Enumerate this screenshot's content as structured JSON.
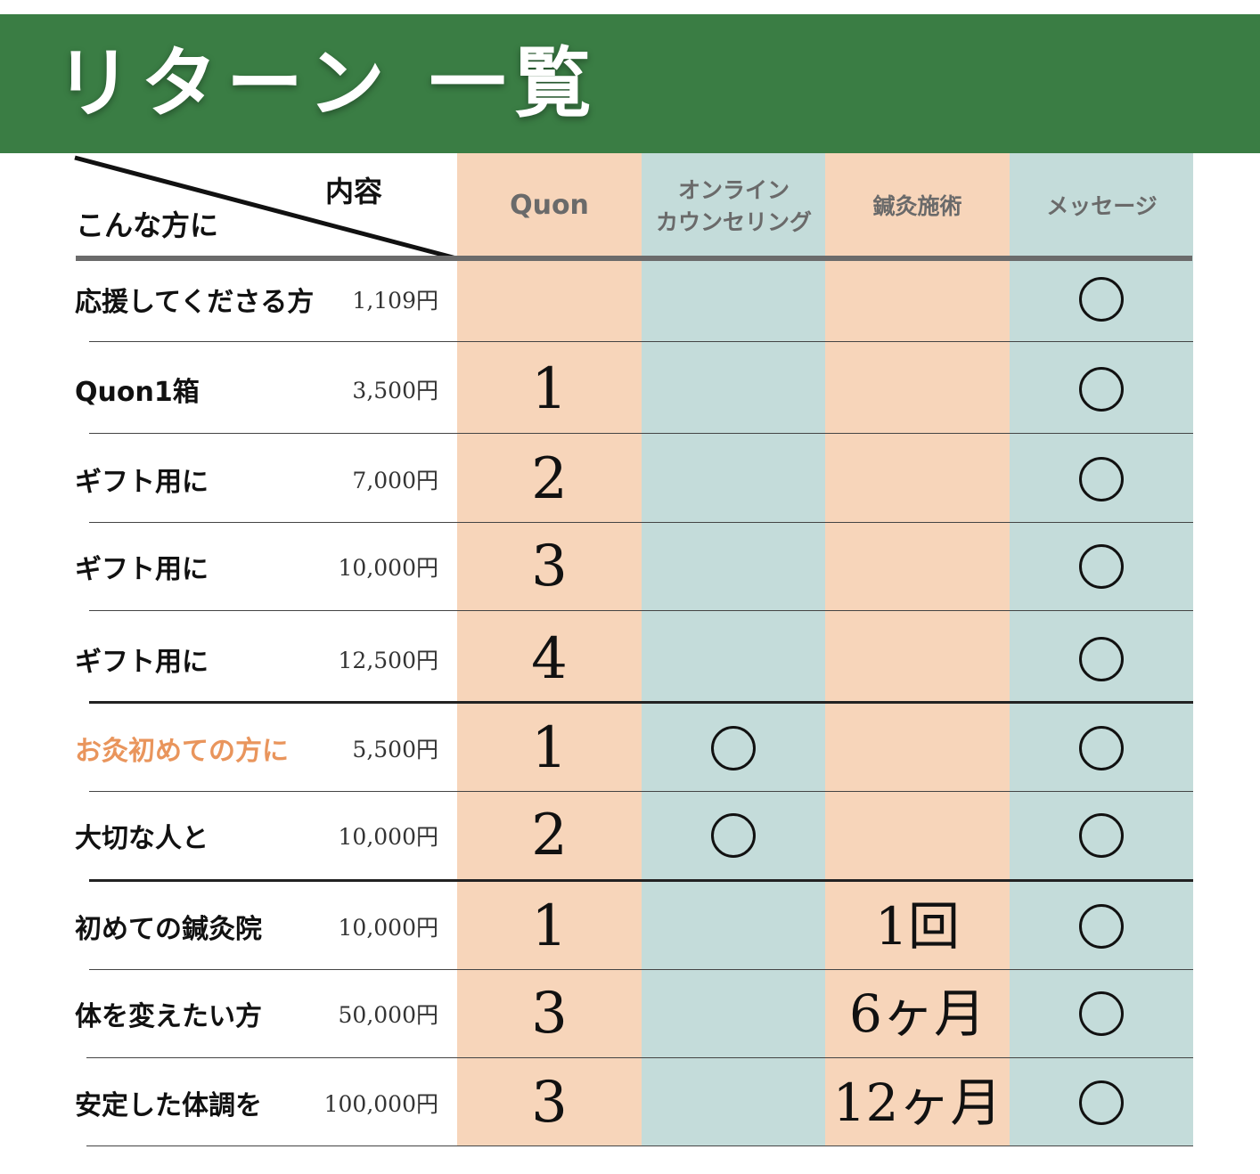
{
  "title": "リターン 一覧",
  "corner": {
    "content_label": "内容",
    "target_label": "こんな方に"
  },
  "columns": [
    {
      "id": "quon",
      "lines": [
        "Quon"
      ]
    },
    {
      "id": "counseling",
      "lines": [
        "オンライン",
        "カウンセリング"
      ]
    },
    {
      "id": "acupuncture",
      "lines": [
        "鍼灸施術"
      ]
    },
    {
      "id": "message",
      "lines": [
        "メッセージ"
      ]
    }
  ],
  "circle_mark": "○",
  "rows": [
    {
      "label": "応援してくださる方",
      "price": "1,109円",
      "quon": "",
      "counseling": false,
      "acupuncture": "",
      "message": true
    },
    {
      "label": "Quon1箱",
      "price": "3,500円",
      "quon": "1",
      "counseling": false,
      "acupuncture": "",
      "message": true
    },
    {
      "label": "ギフト用に",
      "price": "7,000円",
      "quon": "2",
      "counseling": false,
      "acupuncture": "",
      "message": true
    },
    {
      "label": "ギフト用に",
      "price": "10,000円",
      "quon": "3",
      "counseling": false,
      "acupuncture": "",
      "message": true
    },
    {
      "label": "ギフト用に",
      "price": "12,500円",
      "quon": "4",
      "counseling": false,
      "acupuncture": "",
      "message": true
    },
    {
      "label": "お灸初めての方に",
      "price": "5,500円",
      "quon": "1",
      "counseling": true,
      "acupuncture": "",
      "message": true,
      "highlight": true
    },
    {
      "label": "大切な人と",
      "price": "10,000円",
      "quon": "2",
      "counseling": true,
      "acupuncture": "",
      "message": true
    },
    {
      "label": "初めての鍼灸院",
      "price": "10,000円",
      "quon": "1",
      "counseling": false,
      "acupuncture": "1回",
      "message": true
    },
    {
      "label": "体を変えたい方",
      "price": "50,000円",
      "quon": "3",
      "counseling": false,
      "acupuncture": "6ヶ月",
      "message": true
    },
    {
      "label": "安定した体調を",
      "price": "100,000円",
      "quon": "3",
      "counseling": false,
      "acupuncture": "12ヶ月",
      "message": true
    }
  ],
  "colors": {
    "header_green": "#3a7d44",
    "peach": "#f7d5ba",
    "blue_gray": "#c4dcda",
    "accent_orange": "#e9955c"
  }
}
